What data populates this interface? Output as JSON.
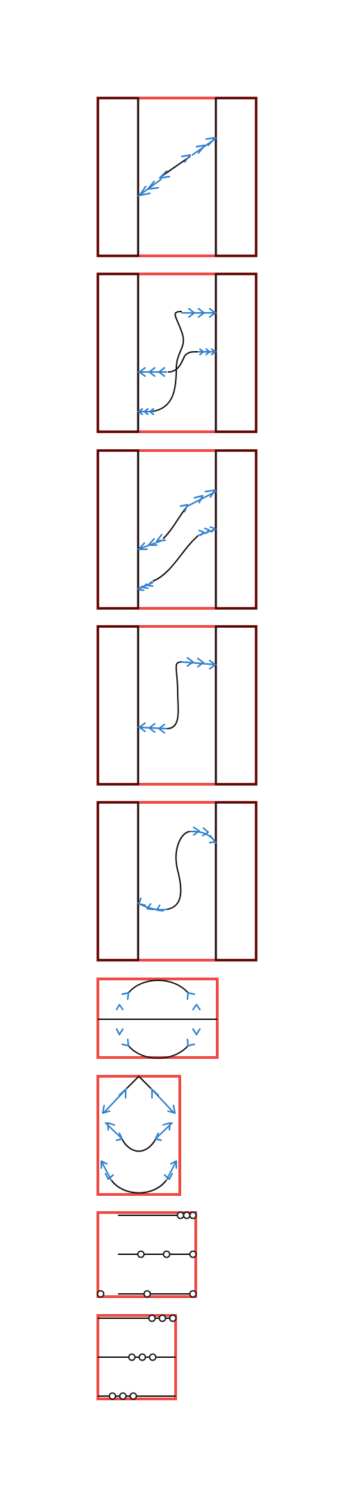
{
  "figure": {
    "panel_count": 9,
    "colors": {
      "frame_red": "#f04a45",
      "frame_dark": "#4a0a0a",
      "curve_black": "#111111",
      "arrow_blue": "#2f7fce",
      "background": "#ffffff"
    },
    "panels": [
      {
        "id": "panel-1",
        "kind": "three-strip box",
        "icon": "diagonal-double-arrow"
      },
      {
        "id": "panel-2",
        "kind": "three-strip box",
        "icon": "forked-s-curve-arrows"
      },
      {
        "id": "panel-3",
        "kind": "three-strip box",
        "icon": "two-diagonal-arrows"
      },
      {
        "id": "panel-4",
        "kind": "three-strip box",
        "icon": "s-curve-arrow"
      },
      {
        "id": "panel-5",
        "kind": "three-strip box",
        "icon": "s-curve-arrow-angled"
      },
      {
        "id": "panel-6",
        "kind": "wide box",
        "icon": "circle-arrows"
      },
      {
        "id": "panel-7",
        "kind": "tall box",
        "icon": "nested-u-arrows"
      },
      {
        "id": "panel-8",
        "kind": "box",
        "icon": "lines-with-circles"
      },
      {
        "id": "panel-9",
        "kind": "box",
        "icon": "lines-with-circles"
      }
    ]
  }
}
